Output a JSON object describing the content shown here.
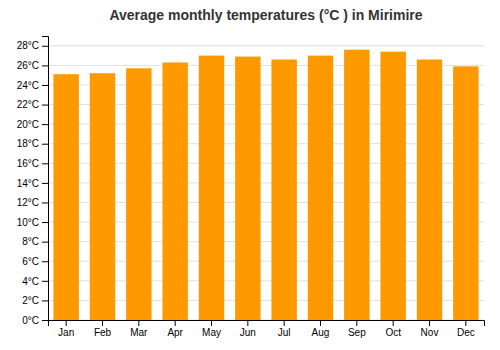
{
  "chart_data": {
    "type": "bar",
    "title": "Average monthly temperatures (°C ) in Mirimire",
    "categories": [
      "Jan",
      "Feb",
      "Mar",
      "Apr",
      "May",
      "Jun",
      "Jul",
      "Aug",
      "Sep",
      "Oct",
      "Nov",
      "Dec"
    ],
    "values": [
      25.1,
      25.2,
      25.7,
      26.3,
      27.0,
      26.9,
      26.6,
      27.0,
      27.6,
      27.4,
      26.6,
      25.9
    ],
    "color": "#FF9900",
    "ylim": [
      0,
      29
    ],
    "yticks": [
      {
        "value": 0,
        "label": "0°C"
      },
      {
        "value": 2,
        "label": "2°C"
      },
      {
        "value": 4,
        "label": "4°C"
      },
      {
        "value": 6,
        "label": "6°C"
      },
      {
        "value": 8,
        "label": "8°C"
      },
      {
        "value": 10,
        "label": "10°C"
      },
      {
        "value": 12,
        "label": "12°C"
      },
      {
        "value": 14,
        "label": "14°C"
      },
      {
        "value": 16,
        "label": "16°C"
      },
      {
        "value": 18,
        "label": "18°C"
      },
      {
        "value": 20,
        "label": "20°C"
      },
      {
        "value": 22,
        "label": "22°C"
      },
      {
        "value": 24,
        "label": "24°C"
      },
      {
        "value": 26,
        "label": "26°C"
      },
      {
        "value": 28,
        "label": "28°C"
      }
    ],
    "grid": true
  }
}
